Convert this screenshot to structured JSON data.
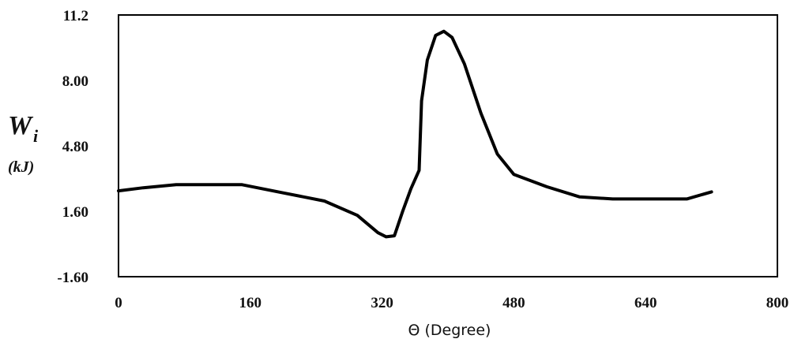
{
  "chart_data": {
    "type": "line",
    "title": "",
    "xlabel": "Θ (Degree)",
    "ylabel_symbol": "W",
    "ylabel_subscript": "i",
    "ylabel_unit": "(kJ)",
    "xlim": [
      0,
      800
    ],
    "ylim": [
      -1.6,
      11.2
    ],
    "x_ticks": [
      0,
      160,
      320,
      480,
      640,
      800
    ],
    "x_tick_labels": [
      "0",
      "160",
      "320",
      "480",
      "640",
      "800"
    ],
    "y_ticks": [
      -1.6,
      1.6,
      4.8,
      8.0,
      11.2
    ],
    "y_tick_labels": [
      "-1.60",
      "1.60",
      "4.80",
      "8.00",
      "11.2"
    ],
    "grid": false,
    "series": [
      {
        "color": "#000000",
        "x": [
          0,
          30,
          70,
          100,
          150,
          200,
          250,
          290,
          315,
          325,
          335,
          345,
          355,
          365,
          368,
          375,
          385,
          395,
          405,
          420,
          440,
          460,
          480,
          520,
          560,
          600,
          650,
          690,
          720
        ],
        "y": [
          2.6,
          2.75,
          2.9,
          2.9,
          2.9,
          2.5,
          2.1,
          1.4,
          0.55,
          0.35,
          0.4,
          1.6,
          2.7,
          3.6,
          7.0,
          9.0,
          10.2,
          10.4,
          10.1,
          8.8,
          6.4,
          4.4,
          3.4,
          2.8,
          2.3,
          2.2,
          2.2,
          2.2,
          2.55
        ]
      }
    ]
  }
}
